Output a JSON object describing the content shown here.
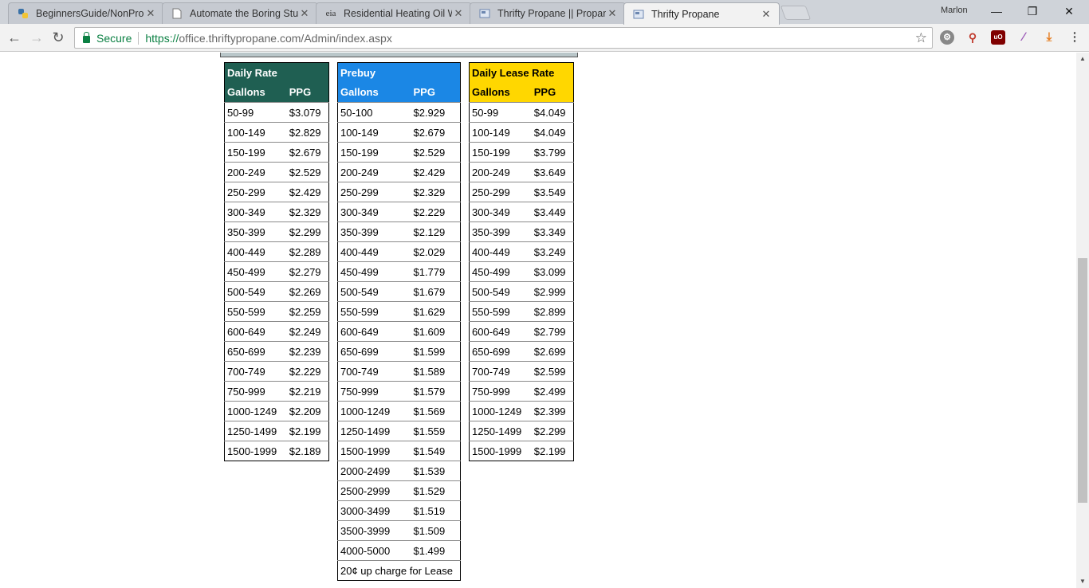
{
  "browser": {
    "tabs": [
      {
        "title": "BeginnersGuide/NonProg",
        "favicon": "python-icon",
        "active": false
      },
      {
        "title": "Automate the Boring Stu",
        "favicon": "document-icon",
        "active": false
      },
      {
        "title": "Residential Heating Oil W",
        "favicon": "eia-icon",
        "active": false
      },
      {
        "title": "Thrifty Propane || Propan",
        "favicon": "page-icon",
        "active": false
      },
      {
        "title": "Thrifty Propane",
        "favicon": "page-icon",
        "active": true
      }
    ],
    "profile_name": "Marlon",
    "secure_label": "Secure",
    "url_scheme": "https://",
    "url_rest": "office.thriftypropane.com/Admin/index.aspx",
    "eia_label": "eia"
  },
  "tables": {
    "daily": {
      "title": "Daily Rate",
      "col_gallons": "Gallons",
      "col_ppg": "PPG",
      "header_color": "#1f5f52",
      "rows": [
        {
          "gallons": "50-99",
          "ppg": "$3.079"
        },
        {
          "gallons": "100-149",
          "ppg": "$2.829"
        },
        {
          "gallons": "150-199",
          "ppg": "$2.679"
        },
        {
          "gallons": "200-249",
          "ppg": "$2.529"
        },
        {
          "gallons": "250-299",
          "ppg": "$2.429"
        },
        {
          "gallons": "300-349",
          "ppg": "$2.329"
        },
        {
          "gallons": "350-399",
          "ppg": "$2.299"
        },
        {
          "gallons": "400-449",
          "ppg": "$2.289"
        },
        {
          "gallons": "450-499",
          "ppg": "$2.279"
        },
        {
          "gallons": "500-549",
          "ppg": "$2.269"
        },
        {
          "gallons": "550-599",
          "ppg": "$2.259"
        },
        {
          "gallons": "600-649",
          "ppg": "$2.249"
        },
        {
          "gallons": "650-699",
          "ppg": "$2.239"
        },
        {
          "gallons": "700-749",
          "ppg": "$2.229"
        },
        {
          "gallons": "750-999",
          "ppg": "$2.219"
        },
        {
          "gallons": "1000-1249",
          "ppg": "$2.209"
        },
        {
          "gallons": "1250-1499",
          "ppg": "$2.199"
        },
        {
          "gallons": "1500-1999",
          "ppg": "$2.189"
        }
      ]
    },
    "prebuy": {
      "title": "Prebuy",
      "col_gallons": "Gallons",
      "col_ppg": "PPG",
      "header_color": "#1b87e5",
      "rows": [
        {
          "gallons": "50-100",
          "ppg": "$2.929"
        },
        {
          "gallons": "100-149",
          "ppg": "$2.679"
        },
        {
          "gallons": "150-199",
          "ppg": "$2.529"
        },
        {
          "gallons": "200-249",
          "ppg": "$2.429"
        },
        {
          "gallons": "250-299",
          "ppg": "$2.329"
        },
        {
          "gallons": "300-349",
          "ppg": "$2.229"
        },
        {
          "gallons": "350-399",
          "ppg": "$2.129"
        },
        {
          "gallons": "400-449",
          "ppg": "$2.029"
        },
        {
          "gallons": "450-499",
          "ppg": "$1.779"
        },
        {
          "gallons": "500-549",
          "ppg": "$1.679"
        },
        {
          "gallons": "550-599",
          "ppg": "$1.629"
        },
        {
          "gallons": "600-649",
          "ppg": "$1.609"
        },
        {
          "gallons": "650-699",
          "ppg": "$1.599"
        },
        {
          "gallons": "700-749",
          "ppg": "$1.589"
        },
        {
          "gallons": "750-999",
          "ppg": "$1.579"
        },
        {
          "gallons": "1000-1249",
          "ppg": "$1.569"
        },
        {
          "gallons": "1250-1499",
          "ppg": "$1.559"
        },
        {
          "gallons": "1500-1999",
          "ppg": "$1.549"
        },
        {
          "gallons": "2000-2499",
          "ppg": "$1.539"
        },
        {
          "gallons": "2500-2999",
          "ppg": "$1.529"
        },
        {
          "gallons": "3000-3499",
          "ppg": "$1.519"
        },
        {
          "gallons": "3500-3999",
          "ppg": "$1.509"
        },
        {
          "gallons": "4000-5000",
          "ppg": "$1.499"
        }
      ],
      "footnote": "20¢ up charge for Lease"
    },
    "lease": {
      "title": "Daily Lease Rate",
      "col_gallons": "Gallons",
      "col_ppg": "PPG",
      "header_color": "#ffd700",
      "rows": [
        {
          "gallons": "50-99",
          "ppg": "$4.049"
        },
        {
          "gallons": "100-149",
          "ppg": "$4.049"
        },
        {
          "gallons": "150-199",
          "ppg": "$3.799"
        },
        {
          "gallons": "200-249",
          "ppg": "$3.649"
        },
        {
          "gallons": "250-299",
          "ppg": "$3.549"
        },
        {
          "gallons": "300-349",
          "ppg": "$3.449"
        },
        {
          "gallons": "350-399",
          "ppg": "$3.349"
        },
        {
          "gallons": "400-449",
          "ppg": "$3.249"
        },
        {
          "gallons": "450-499",
          "ppg": "$3.099"
        },
        {
          "gallons": "500-549",
          "ppg": "$2.999"
        },
        {
          "gallons": "550-599",
          "ppg": "$2.899"
        },
        {
          "gallons": "600-649",
          "ppg": "$2.799"
        },
        {
          "gallons": "650-699",
          "ppg": "$2.699"
        },
        {
          "gallons": "700-749",
          "ppg": "$2.599"
        },
        {
          "gallons": "750-999",
          "ppg": "$2.499"
        },
        {
          "gallons": "1000-1249",
          "ppg": "$2.399"
        },
        {
          "gallons": "1250-1499",
          "ppg": "$2.299"
        },
        {
          "gallons": "1500-1999",
          "ppg": "$2.199"
        }
      ]
    }
  }
}
